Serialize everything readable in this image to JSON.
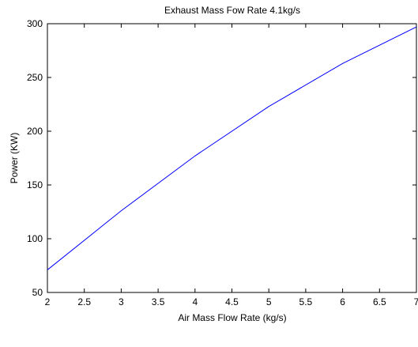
{
  "chart_data": {
    "type": "line",
    "title": "Exhaust Mass Fow Rate 4.1kg/s",
    "xlabel": "Air Mass Flow Rate (kg/s)",
    "ylabel": "Power (KW)",
    "xlim": [
      2,
      7
    ],
    "ylim": [
      50,
      300
    ],
    "xticks": [
      "2",
      "2.5",
      "3",
      "3.5",
      "4",
      "4.5",
      "5",
      "5.5",
      "6",
      "6.5",
      "7"
    ],
    "yticks": [
      "50",
      "100",
      "150",
      "200",
      "250",
      "300"
    ],
    "grid": false,
    "series": [
      {
        "color": "#0000ff",
        "x": [
          2,
          3,
          4,
          5,
          6,
          7
        ],
        "y": [
          71,
          126,
          177,
          223,
          263,
          297
        ]
      }
    ]
  }
}
